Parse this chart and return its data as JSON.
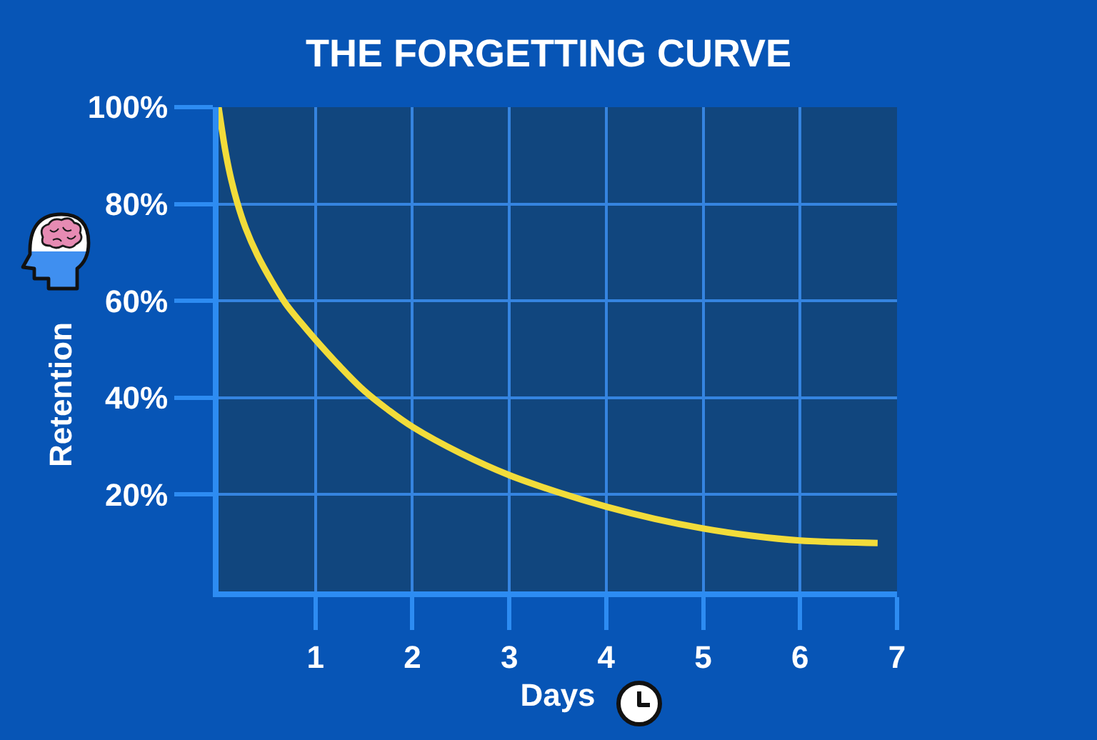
{
  "chart_data": {
    "type": "line",
    "title": "THE FORGETTING CURVE",
    "xlabel": "Days",
    "ylabel": "Retention",
    "x": [
      0,
      0.03,
      0.07,
      0.12,
      0.19,
      0.28,
      0.4,
      0.55,
      0.69,
      0.85,
      1,
      1.25,
      1.5,
      1.75,
      2,
      2.5,
      3,
      3.5,
      4,
      4.5,
      5,
      5.5,
      6,
      6.8
    ],
    "series": [
      {
        "color": "#f2dc3a",
        "values": [
          100,
          96,
          91,
          86,
          80.5,
          75,
          69.5,
          64,
          59.5,
          55.5,
          52,
          46.5,
          41.5,
          37.5,
          34,
          28.5,
          24,
          20.5,
          17.5,
          15,
          13,
          11.5,
          10.5,
          10
        ]
      }
    ],
    "xlim": [
      0,
      7
    ],
    "ylim": [
      0,
      100
    ],
    "xticks": [
      1,
      2,
      3,
      4,
      5,
      6,
      7
    ],
    "yticks": [
      {
        "value": 20,
        "label": "20%"
      },
      {
        "value": 40,
        "label": "40%"
      },
      {
        "value": 60,
        "label": "60%"
      },
      {
        "value": 80,
        "label": "80%"
      },
      {
        "value": 100,
        "label": "100%"
      }
    ],
    "grid": true,
    "line_style": "solid"
  }
}
